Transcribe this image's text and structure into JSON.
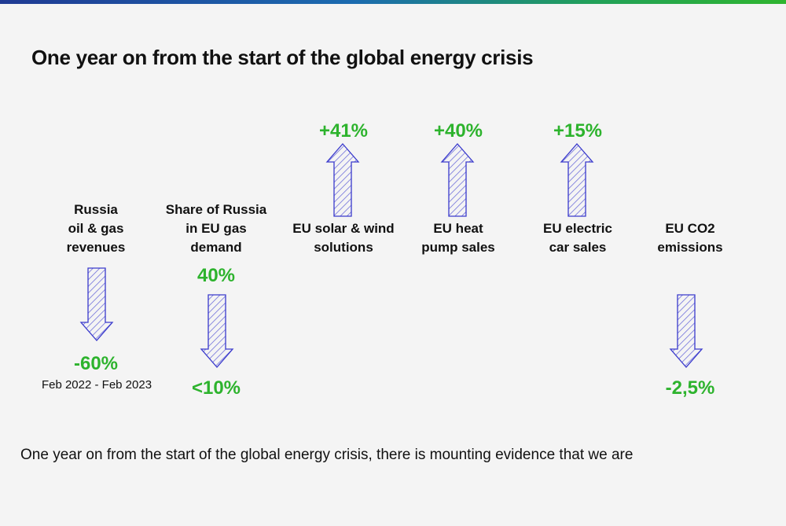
{
  "title": "One year on from the start of the global energy crisis",
  "colors": {
    "accent_green": "#2db32d",
    "arrow_stroke": "#3a3acc",
    "arrow_hatch": "#5a5ad6"
  },
  "indicators": [
    {
      "label": "Russia\noil & gas\nrevenues",
      "direction": "down",
      "value": "-60%",
      "sub": "Feb 2022 - Feb 2023"
    },
    {
      "label": "Share of Russia\nin EU gas\ndemand",
      "direction": "down",
      "from": "40%",
      "value": "<10%"
    },
    {
      "label": "EU solar & wind\nsolutions",
      "direction": "up",
      "value": "+41%"
    },
    {
      "label": "EU heat\npump sales",
      "direction": "up",
      "value": "+40%"
    },
    {
      "label": "EU electric\ncar sales",
      "direction": "up",
      "value": "+15%"
    },
    {
      "label": "EU CO2\nemissions",
      "direction": "down",
      "value": "-2,5%"
    }
  ],
  "footer": "One year on from the start of the global energy crisis, there is mounting evidence that we are"
}
